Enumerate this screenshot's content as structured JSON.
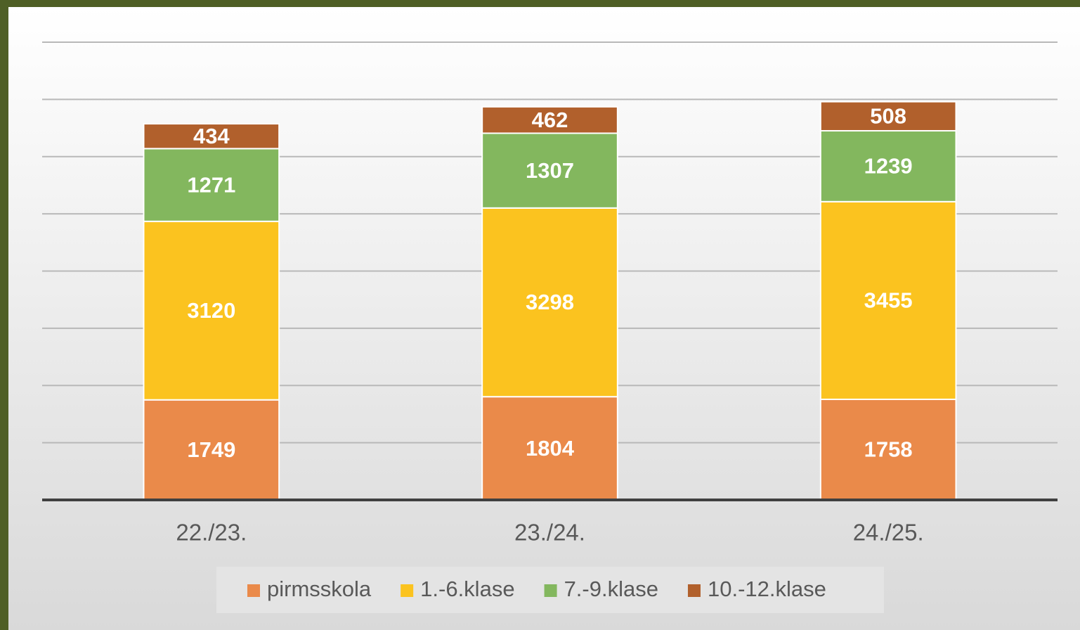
{
  "chart_data": {
    "type": "stacked_bar",
    "categories": [
      "22./23.",
      "23./24.",
      "24./25."
    ],
    "series": [
      {
        "name": "pirmsskola",
        "color": "#ea8a4a",
        "values": [
          1749,
          1804,
          1758
        ]
      },
      {
        "name": "1.-6.klase",
        "color": "#fbc31f",
        "values": [
          3120,
          3298,
          3455
        ]
      },
      {
        "name": "7.-9.klase",
        "color": "#83b75e",
        "values": [
          1271,
          1307,
          1239
        ]
      },
      {
        "name": "10.-12.klase",
        "color": "#b1602c",
        "values": [
          434,
          462,
          508
        ]
      }
    ],
    "ylim": [
      0,
      8000
    ],
    "yticks": [
      0,
      1000,
      2000,
      3000,
      4000,
      5000,
      6000,
      7000,
      8000
    ],
    "grid": true,
    "legend": "bottom"
  }
}
